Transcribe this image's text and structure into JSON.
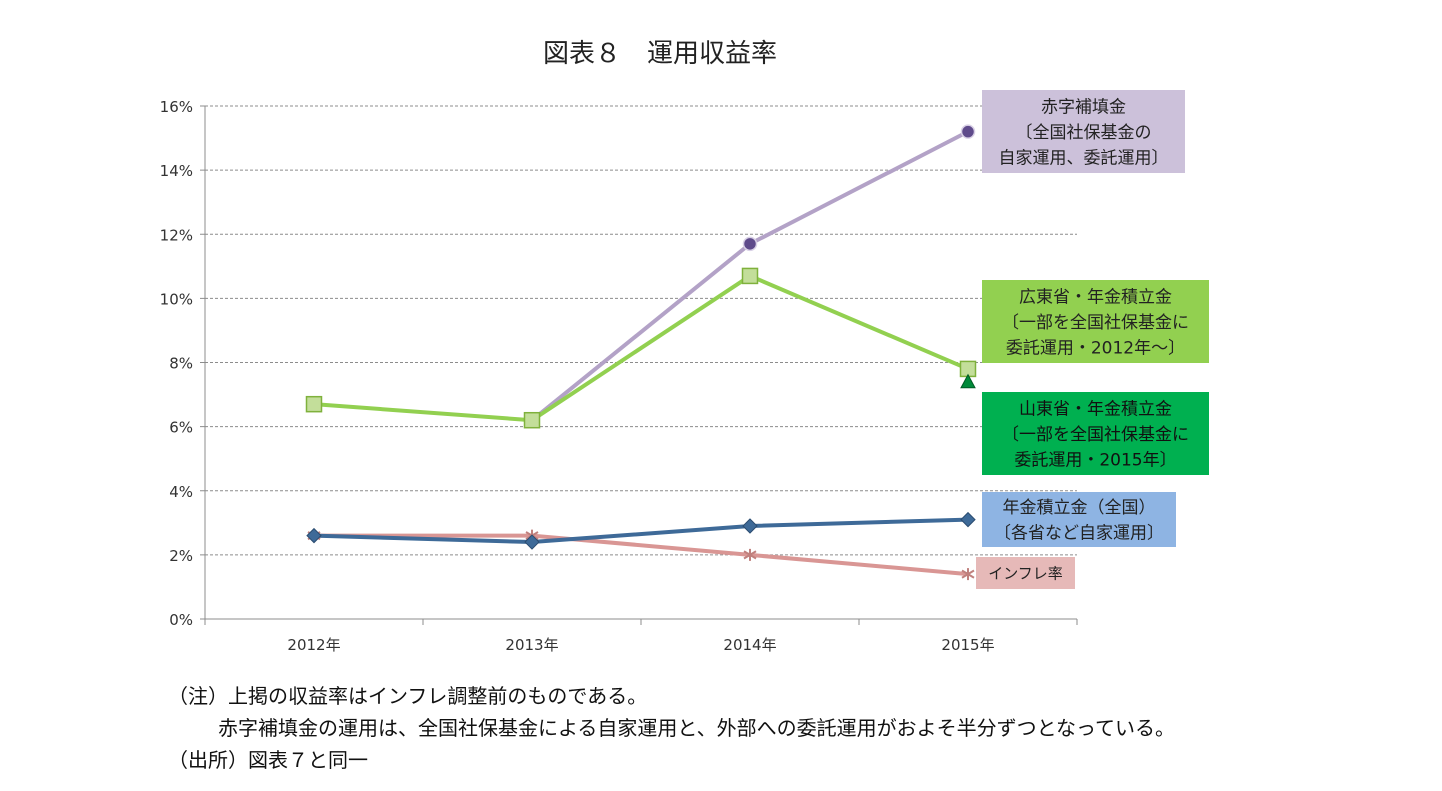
{
  "chart_data": {
    "type": "line",
    "title": "図表８　運用収益率",
    "categories": [
      "2012年",
      "2013年",
      "2014年",
      "2015年"
    ],
    "y_ticks": [
      "0%",
      "2%",
      "4%",
      "6%",
      "8%",
      "10%",
      "12%",
      "14%",
      "16%"
    ],
    "ylim": [
      0,
      16
    ],
    "grid": true,
    "series": [
      {
        "name": "赤字補填金\n〔全国社保基金の\n自家運用、委託運用〕",
        "color": "#B3A2C7",
        "marker": "circle",
        "marker_color": "#5F4B8B",
        "values": [
          null,
          6.2,
          11.7,
          15.2
        ]
      },
      {
        "name": "広東省・年金積立金\n〔一部を全国社保基金に\n委託運用・2012年～〕",
        "color": "#92D050",
        "marker": "square",
        "marker_color": "#C3DE9A",
        "values": [
          6.7,
          6.2,
          10.7,
          7.8
        ]
      },
      {
        "name": "山東省・年金積立金\n〔一部を全国社保基金に\n委託運用・2015年〕",
        "color": "#00B050",
        "marker": "triangle",
        "marker_color": "#008A3A",
        "values": [
          null,
          null,
          null,
          7.4
        ]
      },
      {
        "name": "年金積立金（全国）\n〔各省など自家運用〕",
        "color": "#3E6A98",
        "marker": "diamond",
        "marker_color": "#3E6A98",
        "values": [
          2.6,
          2.4,
          2.9,
          3.1
        ]
      },
      {
        "name": "インフレ率",
        "color": "#D99694",
        "marker": "asterisk",
        "marker_color": "#C0807D",
        "values": [
          2.6,
          2.6,
          2.0,
          1.4
        ]
      }
    ],
    "legend_boxes": [
      {
        "series": 0,
        "bg": "#CCC1DA",
        "text_color": "#222"
      },
      {
        "series": 1,
        "bg": "#92D050",
        "text_color": "#222"
      },
      {
        "series": 2,
        "bg": "#00B050",
        "text_color": "#111"
      },
      {
        "series": 3,
        "bg": "#8EB4E3",
        "text_color": "#222"
      },
      {
        "series": 4,
        "bg": "#E6B9B8",
        "text_color": "#222"
      }
    ]
  },
  "notes": {
    "line1": "（注）上掲の収益率はインフレ調整前のものである。",
    "line2": "赤字補填金の運用は、全国社保基金による自家運用と、外部への委託運用がおよそ半分ずつとなっている。",
    "line3": "（出所）図表７と同一"
  }
}
